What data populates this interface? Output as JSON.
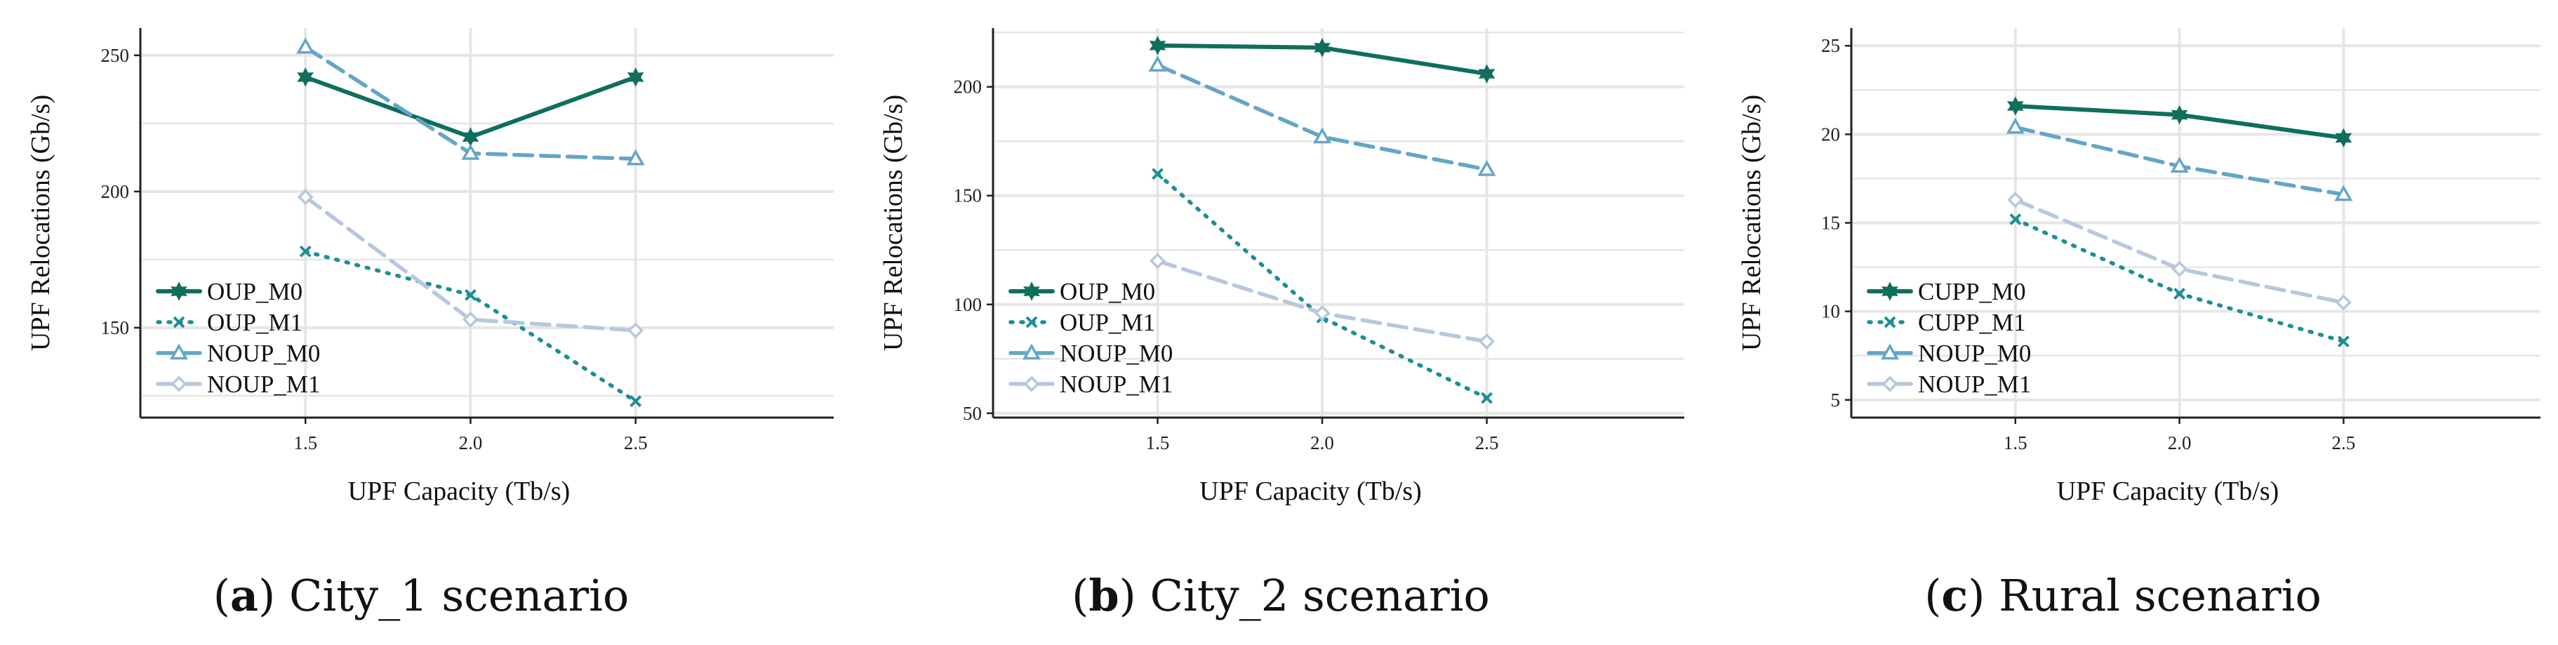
{
  "colors": {
    "dark_green": "#0f6e5c",
    "teal": "#1d8f94",
    "steel_blue": "#63a6c6",
    "light_blue": "#b7c7de",
    "grid": "#e6e6e6",
    "axis": "#222222"
  },
  "chart_data": [
    {
      "type": "line",
      "caption_letter": "a",
      "caption_text": "City_1 scenario",
      "xlabel": "UPF Capacity (Tb/s)",
      "ylabel": "UPF Relocations (Gb/s)",
      "x": [
        1.5,
        2.0,
        2.5
      ],
      "x_tick_labels": [
        "1.5",
        "2.0",
        "2.5"
      ],
      "xlim": [
        1.0,
        3.1
      ],
      "ylim": [
        117,
        260
      ],
      "y_ticks": [
        150,
        200,
        250
      ],
      "y_tick_labels": [
        "150",
        "200",
        "250"
      ],
      "y_minor_grid": [
        125,
        175,
        225
      ],
      "legend_position": "lower-left",
      "series": [
        {
          "name": "OUP_M0",
          "values": [
            242,
            220,
            242
          ],
          "color_key": "dark_green",
          "dash": "solid",
          "marker": "star"
        },
        {
          "name": "OUP_M1",
          "values": [
            178,
            162,
            123
          ],
          "color_key": "teal",
          "dash": "dotted",
          "marker": "x"
        },
        {
          "name": "NOUP_M0",
          "values": [
            253,
            214,
            212
          ],
          "color_key": "steel_blue",
          "dash": "dashed",
          "marker": "triangle"
        },
        {
          "name": "NOUP_M1",
          "values": [
            198,
            153,
            149
          ],
          "color_key": "light_blue",
          "dash": "dashed",
          "marker": "diamond"
        }
      ]
    },
    {
      "type": "line",
      "caption_letter": "b",
      "caption_text": "City_2 scenario",
      "xlabel": "UPF Capacity (Tb/s)",
      "ylabel": "UPF Relocations (Gb/s)",
      "x": [
        1.5,
        2.0,
        2.5
      ],
      "x_tick_labels": [
        "1.5",
        "2.0",
        "2.5"
      ],
      "xlim": [
        1.0,
        3.1
      ],
      "ylim": [
        48,
        227
      ],
      "y_ticks": [
        50,
        100,
        150,
        200
      ],
      "y_tick_labels": [
        "50",
        "100",
        "150",
        "200"
      ],
      "y_minor_grid": [
        75,
        125,
        175,
        225
      ],
      "legend_position": "lower-left",
      "series": [
        {
          "name": "OUP_M0",
          "values": [
            219,
            218,
            206
          ],
          "color_key": "dark_green",
          "dash": "solid",
          "marker": "star"
        },
        {
          "name": "OUP_M1",
          "values": [
            160,
            94,
            57
          ],
          "color_key": "teal",
          "dash": "dotted",
          "marker": "x"
        },
        {
          "name": "NOUP_M0",
          "values": [
            210,
            177,
            162
          ],
          "color_key": "steel_blue",
          "dash": "dashed",
          "marker": "triangle"
        },
        {
          "name": "NOUP_M1",
          "values": [
            120,
            96,
            83
          ],
          "color_key": "light_blue",
          "dash": "dashed",
          "marker": "diamond"
        }
      ]
    },
    {
      "type": "line",
      "caption_letter": "c",
      "caption_text": "Rural scenario",
      "xlabel": "UPF Capacity (Tb/s)",
      "ylabel": "UPF Relocations (Gb/s)",
      "x": [
        1.5,
        2.0,
        2.5
      ],
      "x_tick_labels": [
        "1.5",
        "2.0",
        "2.5"
      ],
      "xlim": [
        1.0,
        3.1
      ],
      "ylim": [
        4,
        26
      ],
      "y_ticks": [
        5,
        10,
        15,
        20,
        25
      ],
      "y_tick_labels": [
        "5",
        "10",
        "15",
        "20",
        "25"
      ],
      "y_minor_grid": [
        7.5,
        12.5,
        17.5,
        22.5
      ],
      "legend_position": "lower-left",
      "series": [
        {
          "name": "CUPP_M0",
          "values": [
            21.6,
            21.1,
            19.8
          ],
          "color_key": "dark_green",
          "dash": "solid",
          "marker": "star"
        },
        {
          "name": "CUPP_M1",
          "values": [
            15.2,
            11.0,
            8.3
          ],
          "color_key": "teal",
          "dash": "dotted",
          "marker": "x"
        },
        {
          "name": "NOUP_M0",
          "values": [
            20.4,
            18.2,
            16.6
          ],
          "color_key": "steel_blue",
          "dash": "dashed",
          "marker": "triangle"
        },
        {
          "name": "NOUP_M1",
          "values": [
            16.3,
            12.4,
            10.5
          ],
          "color_key": "light_blue",
          "dash": "dashed",
          "marker": "diamond"
        }
      ]
    }
  ]
}
